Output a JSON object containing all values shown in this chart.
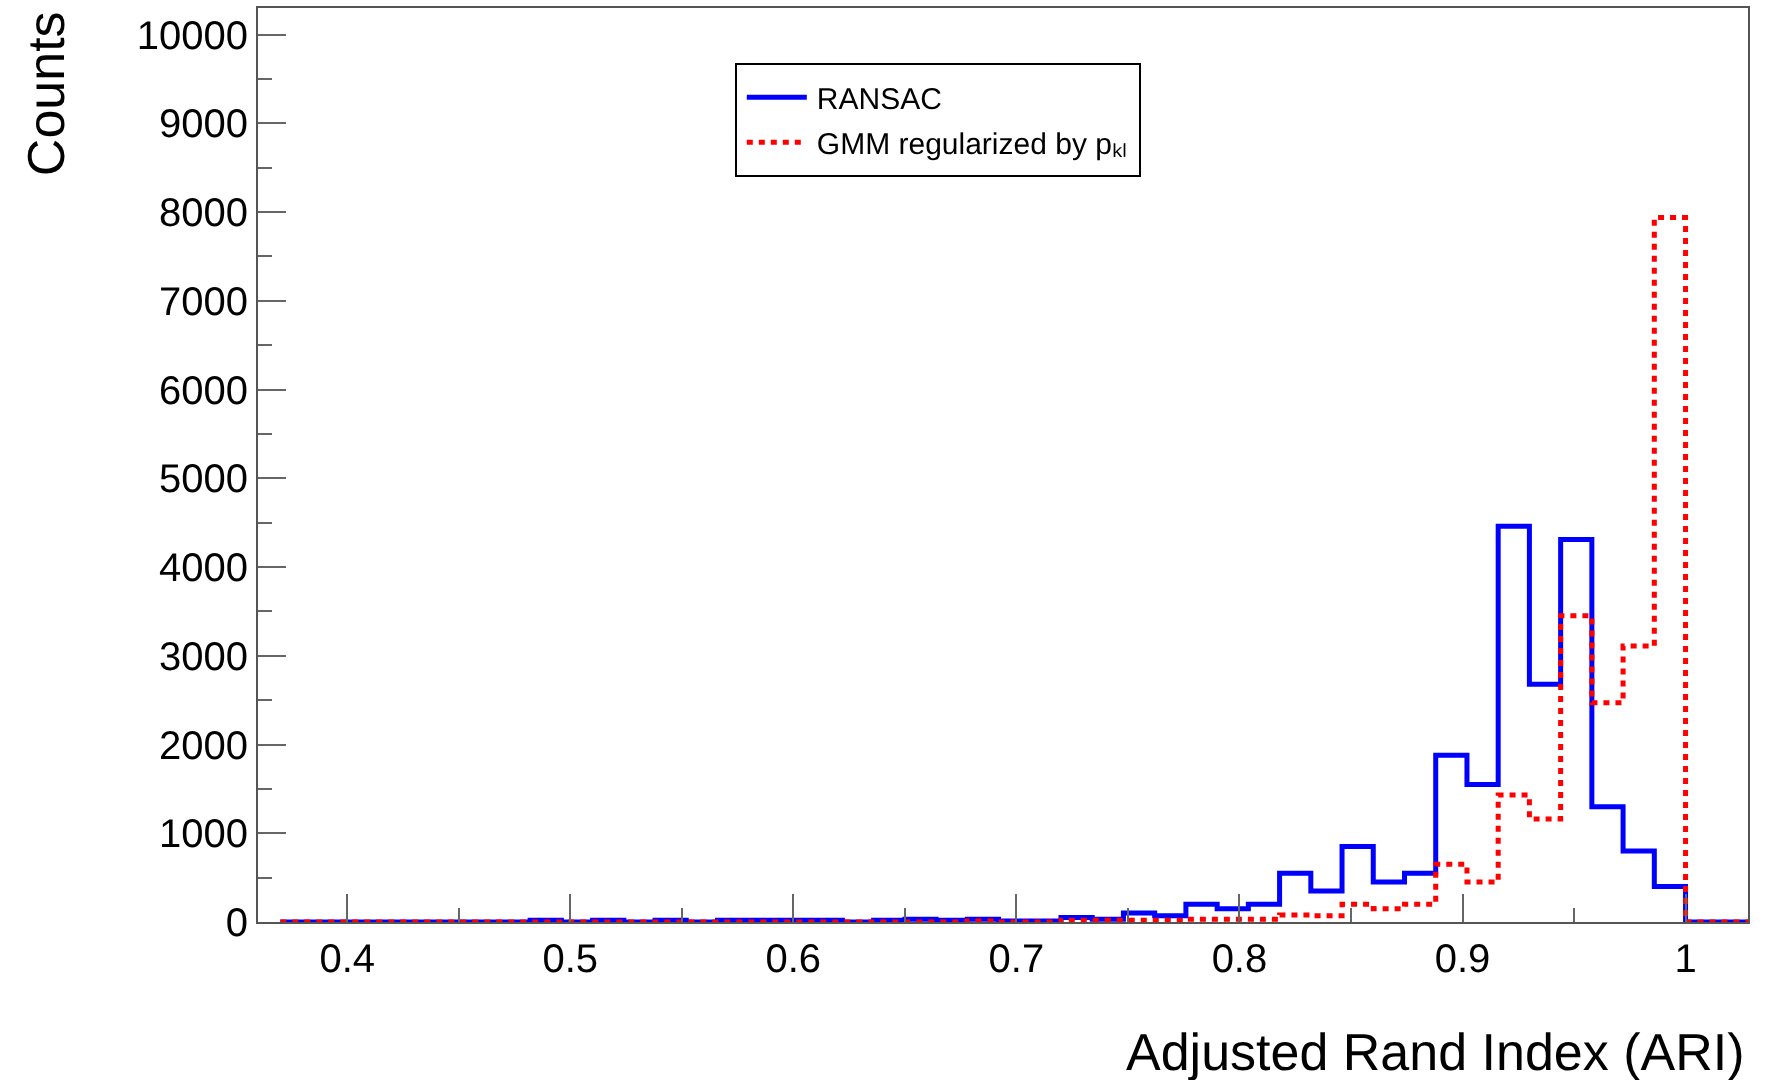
{
  "chart_data": {
    "type": "histogram",
    "xlabel": "Adjusted Rand Index (ARI)",
    "ylabel": "Counts",
    "bins": [
      0.37,
      0.384,
      0.398,
      0.412,
      0.426,
      0.44,
      0.454,
      0.468,
      0.482,
      0.496,
      0.51,
      0.524,
      0.538,
      0.552,
      0.566,
      0.58,
      0.594,
      0.608,
      0.622,
      0.636,
      0.65,
      0.664,
      0.678,
      0.692,
      0.706,
      0.72,
      0.734,
      0.748,
      0.762,
      0.776,
      0.79,
      0.804,
      0.818,
      0.832,
      0.846,
      0.86,
      0.874,
      0.888,
      0.902,
      0.916,
      0.93,
      0.944,
      0.958,
      0.972,
      0.986,
      1.0,
      1.014,
      1.028
    ],
    "series": [
      {
        "name": "RANSAC",
        "color": "#0000ff",
        "line_style": "solid",
        "values": [
          0,
          0,
          0,
          0,
          0,
          0,
          0,
          0,
          20,
          0,
          20,
          0,
          20,
          0,
          20,
          20,
          20,
          20,
          0,
          20,
          30,
          20,
          30,
          10,
          10,
          50,
          30,
          100,
          70,
          200,
          150,
          200,
          550,
          350,
          850,
          450,
          550,
          1880,
          1550,
          4460,
          2680,
          4310,
          1300,
          800,
          400,
          0,
          0
        ]
      },
      {
        "name": "GMM regularized by pₖₗ",
        "color": "#ff0000",
        "line_style": "dotted",
        "values": [
          0,
          0,
          0,
          0,
          0,
          0,
          0,
          0,
          0,
          0,
          0,
          0,
          0,
          0,
          0,
          0,
          0,
          0,
          0,
          0,
          0,
          0,
          10,
          0,
          0,
          20,
          20,
          20,
          20,
          30,
          30,
          30,
          80,
          70,
          200,
          150,
          200,
          650,
          450,
          1430,
          1160,
          3450,
          2470,
          3110,
          7940,
          0,
          0
        ]
      }
    ],
    "xlim": [
      0.36,
      1.028
    ],
    "ylim": [
      0,
      10300
    ],
    "xticks": [
      0.4,
      0.5,
      0.6,
      0.7,
      0.8,
      0.9,
      {
        "value": 1.0,
        "label": "1"
      }
    ],
    "yticks": [
      0,
      1000,
      2000,
      3000,
      4000,
      5000,
      6000,
      7000,
      8000,
      9000,
      10000
    ],
    "legend": "top"
  }
}
